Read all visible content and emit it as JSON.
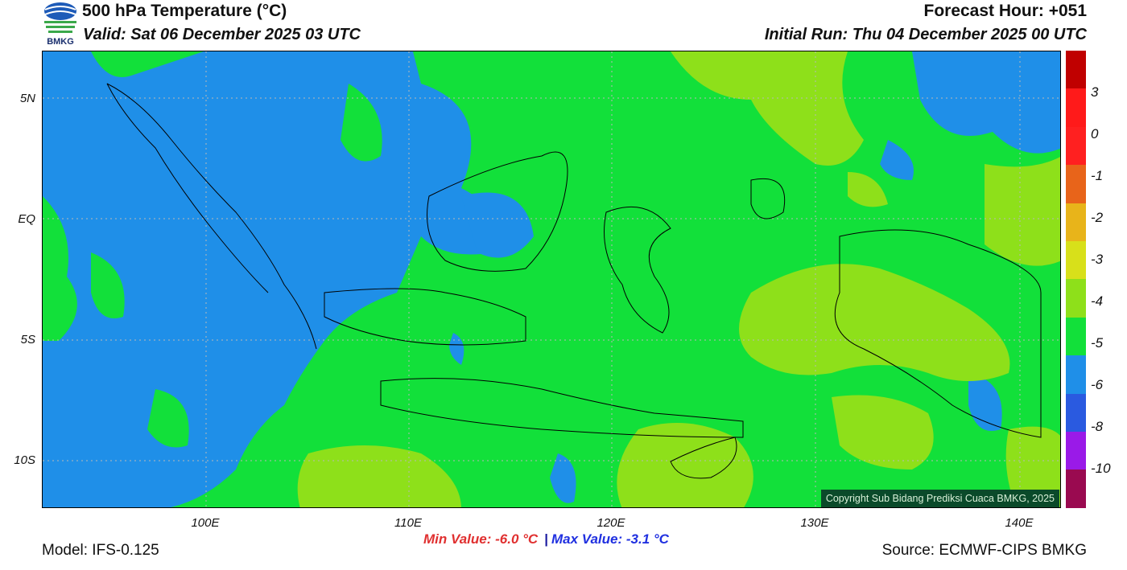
{
  "header": {
    "title": "500 hPa Temperature (°C)",
    "valid": "Valid: Sat 06 December 2025 03 UTC",
    "forecast_hour": "Forecast Hour: +051",
    "initial_run": "Initial Run: Thu 04 December 2025 00 UTC",
    "logo_text": "BMKG"
  },
  "map": {
    "lat_labels": [
      "5N",
      "EQ",
      "5S",
      "10S"
    ],
    "lon_labels": [
      "100E",
      "110E",
      "120E",
      "130E",
      "140E"
    ],
    "copyright": "Copyright Sub Bidang Prediksi Cuaca BMKG, 2025"
  },
  "colorbar": {
    "colors": [
      "#c00000",
      "#ff1a1a",
      "#ff2020",
      "#e8641a",
      "#e8b41a",
      "#d8e01a",
      "#8ee01a",
      "#12e03a",
      "#1f8fe8",
      "#2a5ae0",
      "#9a1ae8",
      "#9a0a50"
    ],
    "labels": [
      "3",
      "0",
      "-1",
      "-2",
      "-3",
      "-4",
      "-5",
      "-6",
      "-8",
      "-10"
    ]
  },
  "footer": {
    "model": "Model: IFS-0.125",
    "min_value": "Min Value: -6.0 °C",
    "separator": "|",
    "max_value": "Max Value: -3.1 °C",
    "source": "Source: ECMWF-CIPS BMKG"
  }
}
